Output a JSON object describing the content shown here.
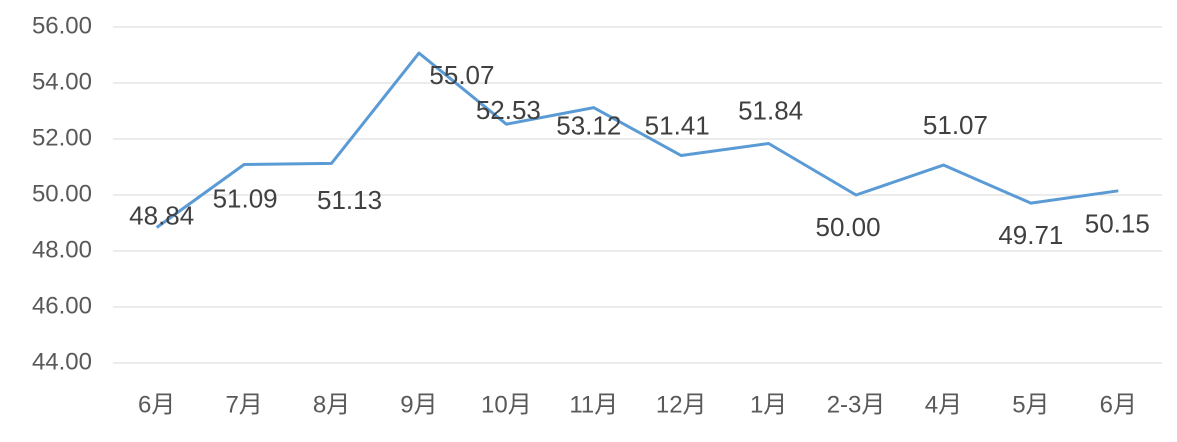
{
  "chart_data": {
    "type": "line",
    "categories": [
      "6月",
      "7月",
      "8月",
      "9月",
      "10月",
      "11月",
      "12月",
      "1月",
      "2-3月",
      "4月",
      "5月",
      "6月"
    ],
    "series": [
      {
        "color": "#5b9bd5",
        "values": [
          48.84,
          51.09,
          51.13,
          55.07,
          52.53,
          53.12,
          51.41,
          51.84,
          50.0,
          51.07,
          49.71,
          50.15
        ],
        "value_labels": [
          "48.84",
          "51.09",
          "51.13",
          "55.07",
          "52.53",
          "53.12",
          "51.41",
          "51.84",
          "50.00",
          "51.07",
          "49.71",
          "50.15"
        ]
      }
    ],
    "ylim": [
      44,
      56
    ],
    "yticks": [
      {
        "value": 44,
        "label": "44.00"
      },
      {
        "value": 46,
        "label": "46.00"
      },
      {
        "value": 48,
        "label": "48.00"
      },
      {
        "value": 50,
        "label": "50.00"
      },
      {
        "value": 52,
        "label": "52.00"
      },
      {
        "value": 54,
        "label": "54.00"
      },
      {
        "value": 56,
        "label": "56.00"
      }
    ],
    "grid": true
  }
}
